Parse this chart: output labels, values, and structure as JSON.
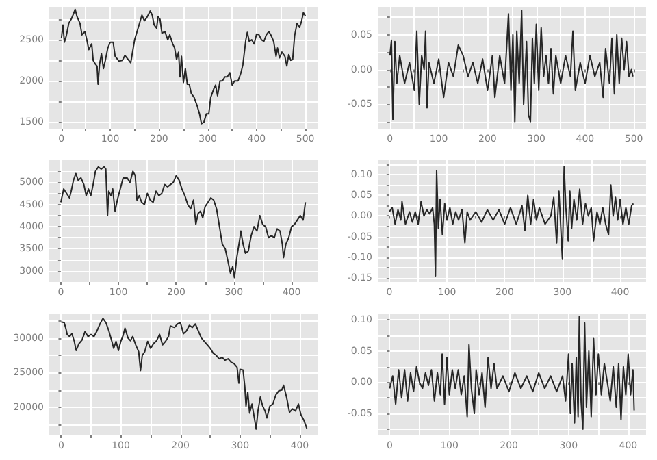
{
  "chart_data": [
    {
      "type": "line",
      "grid": true,
      "xlim": [
        -25,
        525
      ],
      "ylim": [
        1420,
        2900
      ],
      "xticks": [
        0,
        {
          "value": 50,
          "label": null
        },
        100,
        {
          "value": 150,
          "label": null
        },
        200,
        {
          "value": 250,
          "label": null
        },
        300,
        {
          "value": 350,
          "label": null
        },
        400,
        {
          "value": 450,
          "label": null
        },
        500
      ],
      "yticks": [
        1500,
        {
          "value": 1750,
          "label": null
        },
        2000,
        {
          "value": 2250,
          "label": null
        },
        2500,
        {
          "value": 2750,
          "label": null
        }
      ],
      "x": [
        0,
        3,
        6,
        10,
        15,
        20,
        25,
        28,
        32,
        38,
        42,
        48,
        52,
        56,
        62,
        65,
        70,
        73,
        75,
        78,
        82,
        86,
        90,
        95,
        100,
        106,
        110,
        118,
        125,
        130,
        138,
        142,
        150,
        155,
        160,
        165,
        170,
        175,
        182,
        186,
        190,
        195,
        198,
        202,
        206,
        212,
        218,
        222,
        228,
        232,
        236,
        240,
        243,
        246,
        250,
        254,
        258,
        262,
        266,
        272,
        278,
        283,
        287,
        292,
        297,
        302,
        306,
        312,
        316,
        320,
        325,
        330,
        335,
        340,
        345,
        350,
        355,
        362,
        368,
        372,
        378,
        381,
        385,
        390,
        395,
        400,
        405,
        410,
        415,
        420,
        425,
        430,
        435,
        440,
        443,
        447,
        452,
        458,
        462,
        466,
        470,
        474,
        478,
        483,
        488,
        492,
        496,
        500
      ],
      "series": [
        {
          "color": "#262626",
          "values": [
            2520,
            2680,
            2470,
            2550,
            2700,
            2750,
            2820,
            2870,
            2780,
            2700,
            2560,
            2600,
            2500,
            2380,
            2450,
            2250,
            2200,
            2180,
            1960,
            2200,
            2330,
            2150,
            2250,
            2400,
            2470,
            2470,
            2300,
            2240,
            2250,
            2310,
            2250,
            2220,
            2500,
            2600,
            2700,
            2800,
            2730,
            2770,
            2850,
            2800,
            2680,
            2640,
            2780,
            2750,
            2580,
            2600,
            2500,
            2560,
            2450,
            2400,
            2260,
            2350,
            2050,
            2300,
            1980,
            2150,
            1960,
            1960,
            1850,
            1800,
            1700,
            1600,
            1480,
            1500,
            1600,
            1600,
            1800,
            1900,
            1950,
            1820,
            2000,
            2000,
            2050,
            2050,
            2100,
            1950,
            2000,
            2000,
            2100,
            2200,
            2500,
            2590,
            2480,
            2500,
            2450,
            2570,
            2560,
            2500,
            2480,
            2560,
            2600,
            2550,
            2480,
            2300,
            2400,
            2280,
            2350,
            2300,
            2180,
            2320,
            2250,
            2260,
            2550,
            2700,
            2650,
            2720,
            2830,
            2790
          ]
        }
      ]
    },
    {
      "type": "line",
      "grid": true,
      "xlim": [
        -25,
        525
      ],
      "ylim": [
        -0.085,
        0.09
      ],
      "xticks": [
        0,
        {
          "value": 50,
          "label": null
        },
        100,
        {
          "value": 150,
          "label": null
        },
        200,
        {
          "value": 250,
          "label": null
        },
        300,
        {
          "value": 350,
          "label": null
        },
        400,
        {
          "value": 450,
          "label": null
        },
        500
      ],
      "yticks": [
        {
          "value": -0.075,
          "label": null
        },
        {
          "value": -0.05,
          "label": "-0.05"
        },
        {
          "value": -0.025,
          "label": null
        },
        {
          "value": 0,
          "label": "0.00"
        },
        {
          "value": 0.025,
          "label": null
        },
        {
          "value": 0.05,
          "label": "0.05"
        },
        {
          "value": 0.075,
          "label": null
        }
      ],
      "x": [
        0,
        3,
        6,
        10,
        14,
        20,
        30,
        40,
        50,
        55,
        60,
        65,
        70,
        73,
        76,
        80,
        90,
        100,
        110,
        120,
        130,
        140,
        150,
        160,
        170,
        180,
        190,
        200,
        210,
        215,
        225,
        235,
        243,
        248,
        252,
        256,
        260,
        265,
        270,
        274,
        280,
        284,
        288,
        292,
        296,
        300,
        305,
        310,
        315,
        320,
        325,
        330,
        335,
        340,
        350,
        360,
        370,
        375,
        380,
        390,
        400,
        410,
        420,
        430,
        437,
        442,
        450,
        455,
        460,
        465,
        470,
        475,
        480,
        485,
        490,
        495,
        498
      ],
      "series": [
        {
          "color": "#262626",
          "values": [
            0.02,
            0.042,
            -0.072,
            0.04,
            -0.02,
            0.02,
            -0.02,
            0.01,
            -0.03,
            0.055,
            -0.05,
            0.02,
            0,
            0.055,
            -0.055,
            0.01,
            -0.02,
            0.015,
            -0.04,
            0.01,
            -0.01,
            0.035,
            0.02,
            -0.01,
            0.01,
            -0.02,
            0.015,
            -0.03,
            0.02,
            -0.04,
            0.02,
            -0.02,
            0.08,
            -0.03,
            0.05,
            -0.075,
            0.055,
            -0.02,
            0.085,
            -0.05,
            0.04,
            -0.065,
            -0.075,
            0.045,
            -0.02,
            0.065,
            -0.03,
            0.06,
            -0.01,
            0.02,
            -0.02,
            0.03,
            -0.035,
            0.02,
            -0.02,
            0.02,
            -0.01,
            0.055,
            -0.03,
            0.01,
            -0.02,
            0.02,
            -0.01,
            0.01,
            -0.04,
            0.03,
            -0.02,
            0.045,
            -0.035,
            0.05,
            -0.02,
            0.045,
            0,
            0.04,
            -0.01,
            0,
            -0.01
          ]
        }
      ]
    },
    {
      "type": "line",
      "grid": true,
      "xlim": [
        -20,
        445
      ],
      "ylim": [
        2750,
        5500
      ],
      "xticks": [
        0,
        {
          "value": 50,
          "label": null
        },
        100,
        {
          "value": 150,
          "label": null
        },
        200,
        {
          "value": 250,
          "label": null
        },
        300,
        {
          "value": 350,
          "label": null
        },
        400
      ],
      "yticks": [
        3000,
        {
          "value": 3250,
          "label": null
        },
        3500,
        {
          "value": 3750,
          "label": null
        },
        4000,
        {
          "value": 4250,
          "label": null
        },
        4500,
        {
          "value": 4750,
          "label": null
        },
        5000,
        {
          "value": 5250,
          "label": null
        }
      ],
      "x": [
        0,
        5,
        10,
        15,
        18,
        22,
        26,
        30,
        35,
        40,
        44,
        48,
        52,
        56,
        60,
        65,
        70,
        75,
        78,
        81,
        83,
        87,
        90,
        94,
        98,
        102,
        108,
        115,
        120,
        125,
        129,
        132,
        136,
        140,
        145,
        150,
        155,
        160,
        165,
        170,
        175,
        180,
        185,
        190,
        195,
        200,
        205,
        210,
        215,
        220,
        225,
        230,
        234,
        238,
        242,
        246,
        250,
        255,
        260,
        265,
        270,
        275,
        280,
        285,
        290,
        294,
        298,
        301,
        305,
        310,
        312,
        316,
        320,
        325,
        330,
        335,
        340,
        345,
        350,
        355,
        360,
        365,
        370,
        375,
        380,
        384,
        386,
        390,
        395,
        400,
        405,
        410,
        415,
        420,
        424
      ],
      "series": [
        {
          "color": "#262626",
          "values": [
            4550,
            4850,
            4750,
            4650,
            4800,
            5050,
            5200,
            5050,
            5100,
            4950,
            4700,
            4850,
            4700,
            4950,
            5250,
            5350,
            5300,
            5350,
            5300,
            4250,
            4800,
            4700,
            4850,
            4350,
            4600,
            4800,
            5100,
            5100,
            5000,
            5250,
            5150,
            4600,
            4700,
            4550,
            4500,
            4750,
            4600,
            4550,
            4800,
            4700,
            4750,
            4950,
            4900,
            4950,
            5000,
            5150,
            5050,
            4850,
            4700,
            4500,
            4400,
            4600,
            4050,
            4300,
            4350,
            4200,
            4450,
            4550,
            4650,
            4600,
            4400,
            4000,
            3600,
            3500,
            3200,
            2950,
            3100,
            2850,
            3300,
            3700,
            3900,
            3600,
            3400,
            3450,
            3800,
            4000,
            3900,
            4250,
            4050,
            4000,
            3750,
            3800,
            3750,
            3950,
            3900,
            3600,
            3300,
            3600,
            3750,
            4000,
            4050,
            4150,
            4250,
            4150,
            4550
          ]
        }
      ]
    },
    {
      "type": "line",
      "grid": true,
      "xlim": [
        -20,
        445
      ],
      "ylim": [
        -0.16,
        0.135
      ],
      "xticks": [
        0,
        {
          "value": 50,
          "label": null
        },
        100,
        {
          "value": 150,
          "label": null
        },
        200,
        {
          "value": 250,
          "label": null
        },
        300,
        {
          "value": 350,
          "label": null
        },
        400
      ],
      "yticks": [
        {
          "value": -0.15,
          "label": "-0.15"
        },
        {
          "value": -0.125,
          "label": null
        },
        {
          "value": -0.1,
          "label": "-0.10"
        },
        {
          "value": -0.075,
          "label": null
        },
        {
          "value": -0.05,
          "label": "-0.05"
        },
        {
          "value": -0.025,
          "label": null
        },
        {
          "value": 0,
          "label": "0.00"
        },
        {
          "value": 0.025,
          "label": null
        },
        {
          "value": 0.05,
          "label": "0.05"
        },
        {
          "value": 0.075,
          "label": null
        },
        {
          "value": 0.1,
          "label": "0.10"
        },
        {
          "value": 0.125,
          "label": null
        }
      ],
      "x": [
        0,
        5,
        10,
        15,
        20,
        22,
        28,
        35,
        40,
        45,
        50,
        55,
        60,
        65,
        70,
        75,
        78,
        80,
        82,
        85,
        88,
        92,
        96,
        100,
        105,
        110,
        115,
        120,
        126,
        131,
        135,
        140,
        150,
        160,
        170,
        180,
        190,
        200,
        210,
        220,
        230,
        235,
        240,
        245,
        250,
        255,
        260,
        270,
        280,
        285,
        290,
        294,
        298,
        300,
        303,
        306,
        310,
        313,
        316,
        320,
        325,
        330,
        335,
        340,
        345,
        350,
        354,
        360,
        365,
        370,
        375,
        380,
        384,
        388,
        392,
        396,
        400,
        405,
        410,
        415,
        420,
        423
      ],
      "series": [
        {
          "color": "#262626",
          "values": [
            0.01,
            0.02,
            -0.02,
            0.015,
            -0.01,
            0.035,
            -0.02,
            0.01,
            -0.015,
            0.01,
            -0.02,
            0.035,
            0,
            0.015,
            0.005,
            0.02,
            -0.02,
            -0.145,
            0.11,
            -0.03,
            0.04,
            -0.045,
            0.03,
            -0.01,
            0.02,
            -0.02,
            0.01,
            -0.01,
            0.015,
            -0.065,
            0.01,
            -0.01,
            0.01,
            -0.015,
            0.015,
            -0.01,
            0.015,
            -0.02,
            0.02,
            -0.02,
            0.025,
            -0.035,
            0.05,
            -0.02,
            0.04,
            -0.01,
            0.02,
            -0.02,
            0,
            0.045,
            -0.065,
            0.06,
            -0.05,
            -0.105,
            0.12,
            0.02,
            -0.06,
            0.06,
            -0.03,
            0.04,
            -0.01,
            0.065,
            -0.02,
            0.03,
            0,
            0.02,
            -0.06,
            0.01,
            -0.02,
            0.02,
            -0.02,
            -0.045,
            0.075,
            0,
            0.045,
            -0.01,
            0.04,
            -0.02,
            0.02,
            -0.02,
            0.025,
            0.03
          ]
        }
      ]
    },
    {
      "type": "line",
      "grid": true,
      "xlim": [
        -20,
        430
      ],
      "ylim": [
        16000,
        33500
      ],
      "xticks": [
        0,
        {
          "value": 50,
          "label": null
        },
        100,
        {
          "value": 150,
          "label": null
        },
        200,
        {
          "value": 250,
          "label": null
        },
        300,
        {
          "value": 350,
          "label": null
        },
        400
      ],
      "yticks": [
        {
          "value": 17500,
          "label": null
        },
        20000,
        {
          "value": 22500,
          "label": null
        },
        25000,
        {
          "value": 27500,
          "label": null
        },
        30000,
        {
          "value": 32500,
          "label": null
        }
      ],
      "x": [
        0,
        5,
        8,
        10,
        14,
        18,
        22,
        25,
        30,
        35,
        40,
        45,
        50,
        55,
        60,
        65,
        70,
        75,
        80,
        85,
        88,
        92,
        96,
        100,
        104,
        107,
        112,
        116,
        120,
        125,
        130,
        133,
        136,
        140,
        145,
        150,
        155,
        160,
        165,
        170,
        175,
        180,
        183,
        190,
        195,
        200,
        205,
        210,
        215,
        220,
        225,
        230,
        235,
        240,
        245,
        250,
        255,
        260,
        265,
        270,
        275,
        280,
        285,
        290,
        295,
        298,
        300,
        305,
        308,
        310,
        313,
        316,
        320,
        325,
        327,
        330,
        334,
        338,
        342,
        345,
        350,
        355,
        360,
        365,
        370,
        373,
        378,
        383,
        388,
        393,
        398,
        402,
        407,
        412
      ],
      "series": [
        {
          "color": "#262626",
          "values": [
            32300,
            32200,
            31300,
            30500,
            30200,
            30600,
            29500,
            28200,
            29200,
            29700,
            30900,
            30200,
            30500,
            30200,
            31000,
            32000,
            32800,
            32200,
            31000,
            29500,
            28500,
            29500,
            28200,
            29500,
            30400,
            31400,
            30000,
            29600,
            30200,
            29000,
            28000,
            25300,
            27500,
            28000,
            29500,
            28500,
            29200,
            29600,
            30500,
            29000,
            29500,
            30200,
            31700,
            31500,
            32000,
            32200,
            30600,
            31000,
            31800,
            31500,
            32000,
            31000,
            30000,
            29500,
            29000,
            28500,
            27800,
            27500,
            27000,
            27200,
            26800,
            27000,
            26500,
            26300,
            25800,
            23500,
            25500,
            25400,
            23000,
            20200,
            22200,
            19200,
            20500,
            18000,
            16900,
            19500,
            21500,
            20200,
            19500,
            18500,
            20200,
            20500,
            21800,
            22400,
            22500,
            23200,
            21500,
            19300,
            19800,
            19500,
            20500,
            19000,
            18200,
            17000
          ]
        }
      ]
    },
    {
      "type": "line",
      "grid": true,
      "xlim": [
        -20,
        430
      ],
      "ylim": [
        -0.085,
        0.11
      ],
      "xticks": [
        0,
        {
          "value": 50,
          "label": null
        },
        100,
        {
          "value": 150,
          "label": null
        },
        200,
        {
          "value": 250,
          "label": null
        },
        300,
        {
          "value": 350,
          "label": null
        },
        400
      ],
      "yticks": [
        {
          "value": -0.075,
          "label": null
        },
        {
          "value": -0.05,
          "label": "-0.05"
        },
        {
          "value": -0.025,
          "label": null
        },
        {
          "value": 0,
          "label": "0.00"
        },
        {
          "value": 0.025,
          "label": null
        },
        {
          "value": 0.05,
          "label": "0.05"
        },
        {
          "value": 0.075,
          "label": null
        },
        {
          "value": 0.1,
          "label": "0.10"
        }
      ],
      "x": [
        0,
        5,
        10,
        15,
        20,
        25,
        30,
        35,
        40,
        45,
        50,
        55,
        60,
        65,
        70,
        75,
        80,
        85,
        88,
        92,
        96,
        100,
        105,
        110,
        115,
        120,
        125,
        130,
        133,
        137,
        142,
        145,
        150,
        155,
        160,
        165,
        170,
        175,
        180,
        190,
        200,
        210,
        220,
        230,
        240,
        250,
        260,
        270,
        280,
        290,
        295,
        300,
        303,
        306,
        310,
        313,
        316,
        318,
        321,
        324,
        327,
        330,
        334,
        338,
        342,
        346,
        350,
        355,
        360,
        365,
        370,
        375,
        380,
        384,
        388,
        392,
        396,
        400,
        404,
        408,
        410
      ],
      "series": [
        {
          "color": "#262626",
          "values": [
            -0.01,
            0.01,
            -0.035,
            0.02,
            -0.025,
            0.02,
            -0.03,
            0.015,
            -0.015,
            0.025,
            0,
            -0.01,
            0.015,
            -0.005,
            0.02,
            -0.03,
            0.015,
            -0.02,
            0.045,
            -0.035,
            0.04,
            -0.02,
            0.02,
            -0.01,
            0.02,
            -0.02,
            0.01,
            -0.055,
            0.06,
            -0.01,
            -0.05,
            0.02,
            -0.02,
            0.015,
            -0.04,
            0.04,
            -0.01,
            0.03,
            -0.01,
            0.01,
            -0.015,
            0.015,
            -0.01,
            0.01,
            -0.015,
            0.015,
            -0.01,
            0.01,
            -0.015,
            0.01,
            -0.03,
            0.045,
            -0.05,
            0.03,
            -0.065,
            0.04,
            -0.055,
            0.105,
            -0.03,
            -0.075,
            0.095,
            -0.04,
            0.05,
            -0.055,
            0.07,
            -0.02,
            0.045,
            -0.02,
            0.03,
            0,
            -0.03,
            0.025,
            -0.04,
            0.03,
            -0.06,
            0.025,
            -0.02,
            0.045,
            -0.02,
            0.02,
            -0.045
          ]
        }
      ]
    }
  ]
}
